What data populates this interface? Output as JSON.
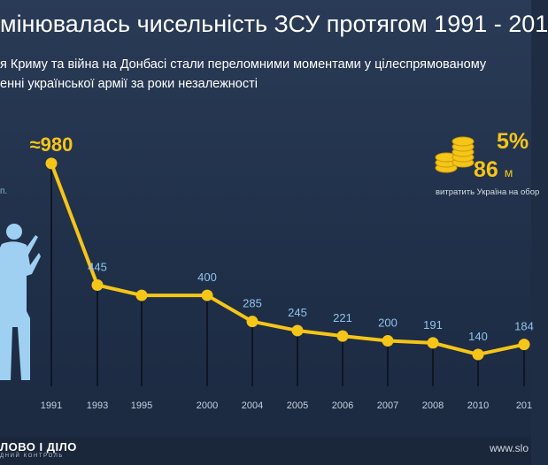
{
  "header": {
    "title": "мінювалась чисельність ЗСУ протягом 1991 - 201",
    "subtitle_line1": "я Криму та війна на Донбасі стали переломними моментами у цілеспрямованому",
    "subtitle_line2": "енні української армії за роки незалежності"
  },
  "budget": {
    "percent": "5%",
    "amount": "86",
    "amount_unit": "м",
    "caption": "витратить Україна на обор"
  },
  "unit_note": "п.",
  "chart_data": {
    "type": "line",
    "x": [
      "1991",
      "1993",
      "1995",
      "2000",
      "2004",
      "2005",
      "2006",
      "2007",
      "2008",
      "2010",
      "201"
    ],
    "values": [
      980,
      445,
      400,
      400,
      285,
      245,
      221,
      200,
      191,
      140,
      184
    ],
    "value_labels": [
      "≈980",
      "445",
      "",
      "400",
      "285",
      "245",
      "221",
      "200",
      "191",
      "140",
      "184"
    ],
    "title": "мінювалась чисельність ЗСУ протягом 1991 - 201",
    "xlabel": "",
    "ylabel": "",
    "line_color": "#f5c518",
    "label_color": "#8fc3ec",
    "highlight_label_color": "#f5c518",
    "grid": false
  },
  "footer": {
    "logo": "ЛОВО І ДІЛО",
    "logo_sub": "ДНИЙ КОНТРОЛЬ",
    "site": "www.slo"
  },
  "colors": {
    "background": "#223149",
    "accent": "#f5c518",
    "soldier": "#9fd0f2"
  }
}
